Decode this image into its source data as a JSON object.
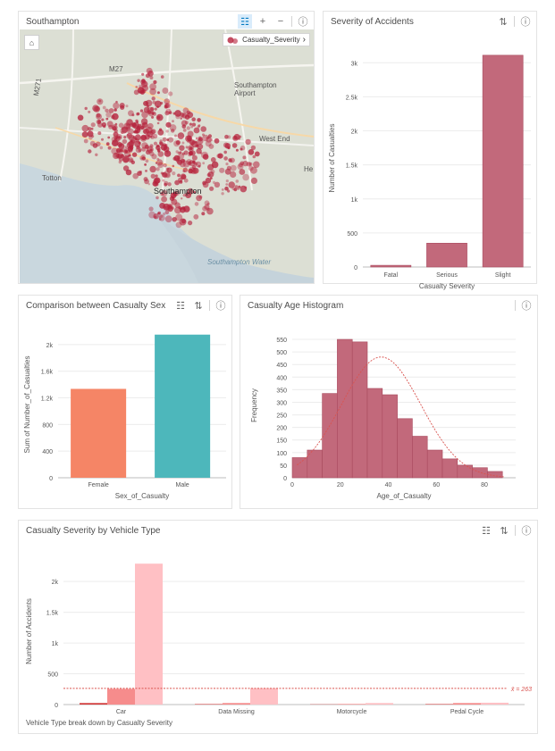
{
  "map_card": {
    "title": "Southampton",
    "legend_label": "Casualty_Severity",
    "labels": {
      "southampton_airport": "Southampton\nAirport",
      "southampton": "Southampton",
      "southampton_water": "Southampton Water",
      "west_end": "West End",
      "totton": "Totton",
      "m27": "M27",
      "m271": "M271",
      "hedge": "He"
    },
    "point_color": "#b5213b"
  },
  "chart_data": [
    {
      "type": "bar",
      "id": "severity",
      "title": "Severity of Accidents",
      "categories": [
        "Fatal",
        "Serious",
        "Slight"
      ],
      "values": [
        25,
        350,
        3110
      ],
      "xlabel": "Casualty Severity",
      "ylabel": "Number of Casualties",
      "ylim": [
        0,
        3200
      ],
      "yticks": [
        0,
        500,
        1000,
        1500,
        2000,
        2500,
        3000
      ],
      "ytick_labels": [
        "0",
        "500",
        "1k",
        "1.5k",
        "2k",
        "2.5k",
        "3k"
      ],
      "color": "#c2697b",
      "grid": true
    },
    {
      "type": "bar",
      "id": "sex",
      "title": "Comparison between Casualty Sex",
      "categories": [
        "Female",
        "Male"
      ],
      "values": [
        1335,
        2150
      ],
      "colors": [
        "#f58566",
        "#4db7bb"
      ],
      "xlabel": "Sex_of_Casualty",
      "ylabel": "Sum of Number_of_Casualties",
      "ylim": [
        0,
        2200
      ],
      "yticks": [
        0,
        400,
        800,
        1200,
        1600,
        2000
      ],
      "ytick_labels": [
        "0",
        "400",
        "800",
        "1.2k",
        "1.6k",
        "2k"
      ],
      "grid": true
    },
    {
      "type": "bar",
      "id": "histogram",
      "title": "Casualty Age Histogram",
      "bins_start": 0,
      "bin_width": 6.25,
      "values": [
        80,
        110,
        335,
        550,
        540,
        355,
        330,
        235,
        165,
        110,
        75,
        50,
        40,
        25
      ],
      "xlabel": "Age_of_Casualty",
      "ylabel": "Frequency",
      "xlim": [
        0,
        93
      ],
      "xticks": [
        0,
        20,
        40,
        60,
        80
      ],
      "ylim": [
        0,
        575
      ],
      "yticks": [
        0,
        50,
        100,
        150,
        200,
        250,
        300,
        350,
        400,
        450,
        500,
        550
      ],
      "normal_curve": {
        "mean": 37,
        "sd": 16.5,
        "peak": 480
      },
      "color": "#c2697b",
      "grid": true
    },
    {
      "type": "bar",
      "id": "vehicle",
      "title": "Casualty Severity by Vehicle Type",
      "categories": [
        "Car",
        "Data Missing",
        "Motorcycle",
        "Pedal Cycle"
      ],
      "series": [
        {
          "values": [
            25,
            8,
            4,
            8
          ],
          "color": "#d33e3e"
        },
        {
          "values": [
            255,
            25,
            10,
            25
          ],
          "color": "#f68c8c"
        },
        {
          "values": [
            2290,
            265,
            25,
            30
          ],
          "color": "#ffc0c4"
        }
      ],
      "xlabel": "Vehicle Type break down by Casualty Severity",
      "ylabel": "Number of Accidents",
      "ylim": [
        0,
        2380
      ],
      "yticks": [
        0,
        500,
        1000,
        1500,
        2000
      ],
      "ytick_labels": [
        "0",
        "500",
        "1k",
        "1.5k",
        "2k"
      ],
      "mean_line": {
        "value": 263,
        "label": "x̄ = 263",
        "color": "#d9534f"
      },
      "grid": true
    }
  ],
  "icons": {
    "legend": "☷",
    "sort": "⇅",
    "info": "ⓘ",
    "zoom_in": "+",
    "zoom_out": "−",
    "home": "⌂",
    "chevron": "›"
  }
}
